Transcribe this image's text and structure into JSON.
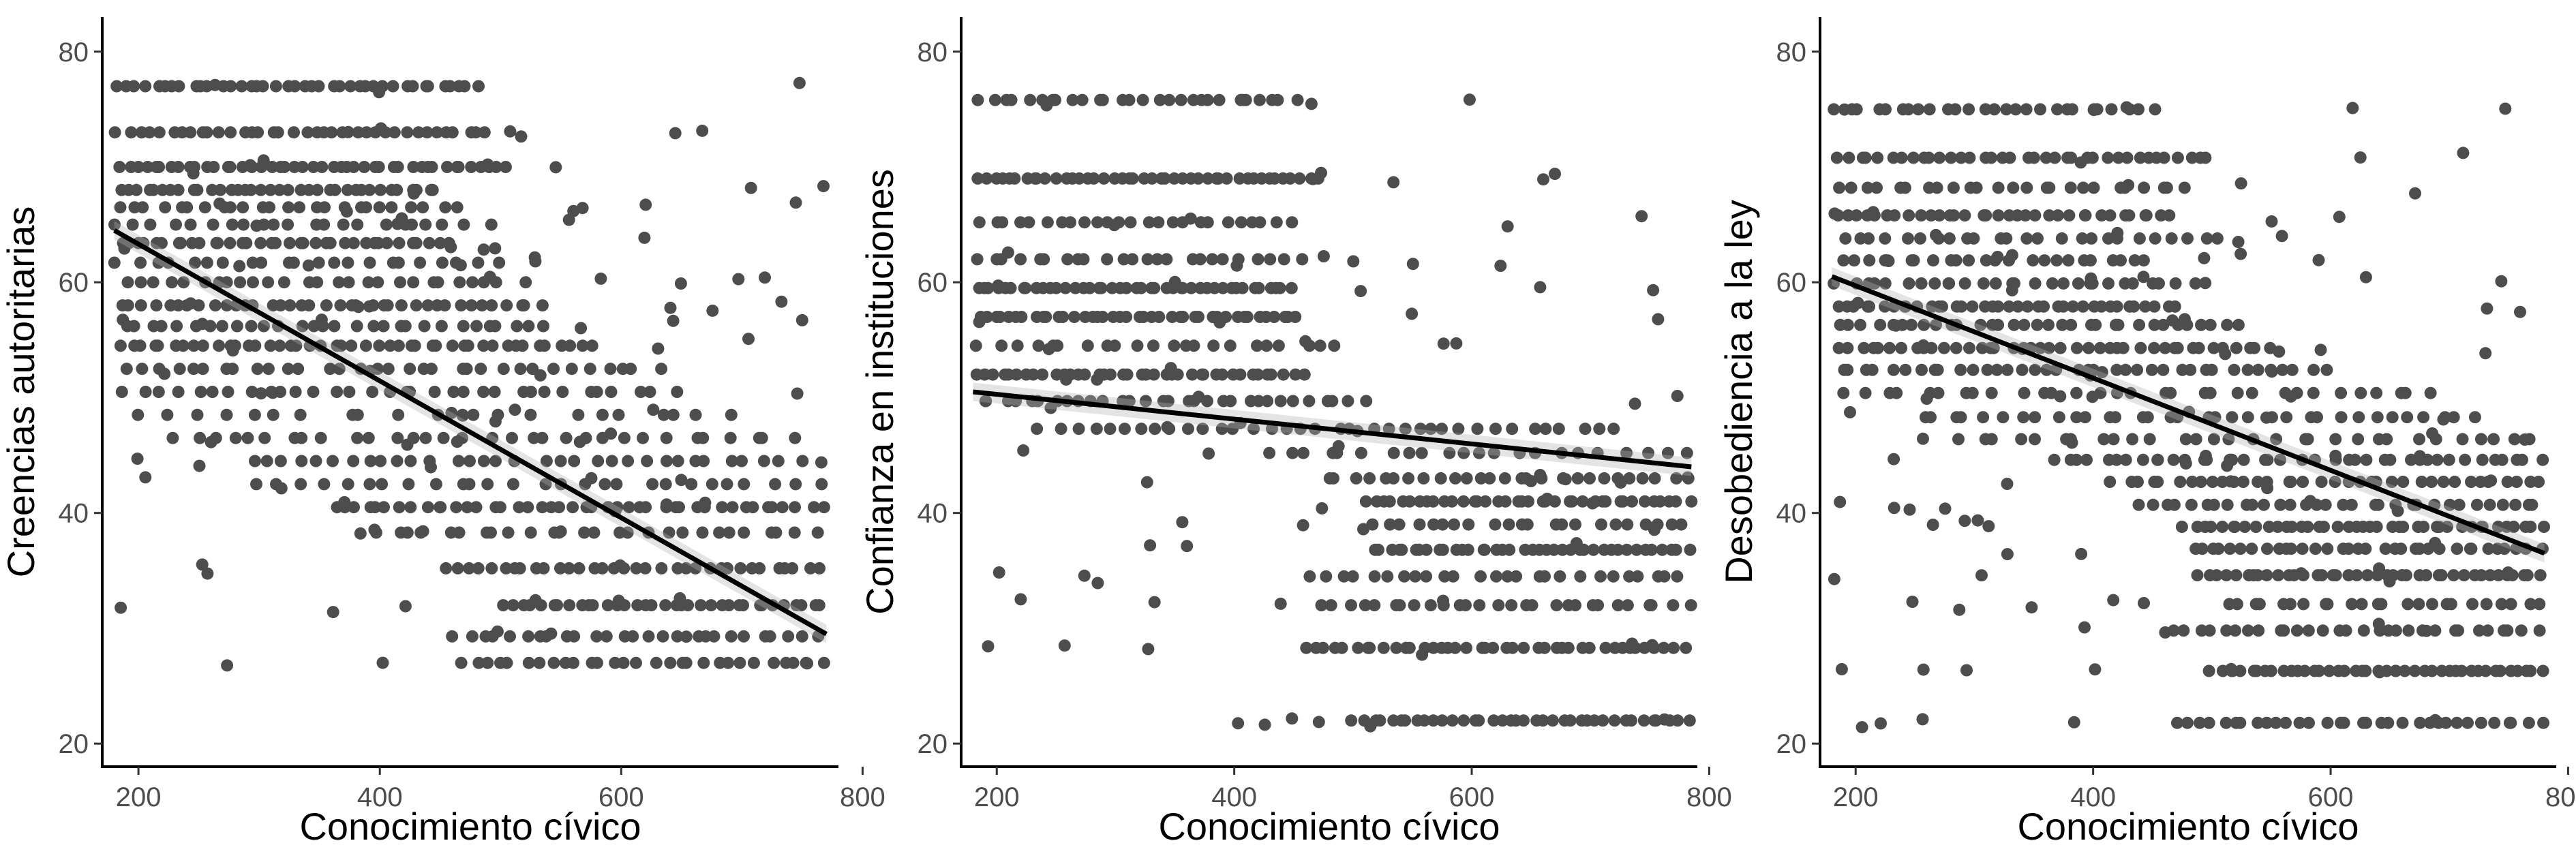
{
  "chart_data": [
    {
      "type": "scatter",
      "xlabel": "Conocimiento cívico",
      "ylabel": "Creencias autoritarias",
      "xlim": [
        170,
        780
      ],
      "ylim": [
        18,
        83
      ],
      "xticks": [
        200,
        400,
        600,
        800
      ],
      "yticks": [
        20,
        40,
        60,
        80
      ],
      "x_range": [
        180,
        770
      ],
      "y_levels": [
        27,
        29.3,
        32,
        35.2,
        38.3,
        40.5,
        42.5,
        44.5,
        46.5,
        48.5,
        50.5,
        52.5,
        54.5,
        56.2,
        58,
        60,
        61.7,
        63.4,
        65,
        66.5,
        68,
        70,
        73,
        77
      ],
      "trend": {
        "x": [
          180,
          770
        ],
        "y": [
          64.5,
          29.5
        ]
      },
      "grid": false,
      "legend": "none"
    },
    {
      "type": "scatter",
      "xlabel": "Conocimiento cívico",
      "ylabel": "Confianza en instituciones",
      "xlim": [
        170,
        790
      ],
      "ylim": [
        18,
        83
      ],
      "xticks": [
        200,
        400,
        600,
        800
      ],
      "yticks": [
        20,
        40,
        60,
        80
      ],
      "x_range": [
        180,
        785
      ],
      "y_levels": [
        22,
        28.3,
        32,
        34.5,
        36.8,
        39,
        41,
        43,
        45.2,
        47.3,
        49.7,
        52,
        54.5,
        57,
        59.5,
        62,
        65.2,
        69,
        75.8
      ],
      "trend": {
        "x": [
          180,
          785
        ],
        "y": [
          50.5,
          44
        ]
      },
      "grid": false,
      "legend": "none"
    },
    {
      "type": "scatter",
      "xlabel": "Conocimiento cívico",
      "ylabel": "Desobediencia a la ley",
      "xlim": [
        170,
        790
      ],
      "ylim": [
        18,
        83
      ],
      "xticks": [
        200,
        400,
        600,
        800
      ],
      "yticks": [
        20,
        40,
        60,
        80
      ],
      "x_range": [
        180,
        780
      ],
      "y_levels": [
        21.8,
        26.3,
        29.8,
        32.1,
        34.6,
        36.9,
        38.8,
        40.7,
        42.7,
        44.6,
        46.4,
        48.3,
        50.4,
        52.4,
        54.3,
        56.3,
        57.9,
        59.9,
        61.9,
        63.8,
        65.8,
        68.2,
        70.8,
        75
      ],
      "trend": {
        "x": [
          180,
          780
        ],
        "y": [
          60.5,
          36.5
        ]
      },
      "grid": false,
      "legend": "none"
    }
  ]
}
